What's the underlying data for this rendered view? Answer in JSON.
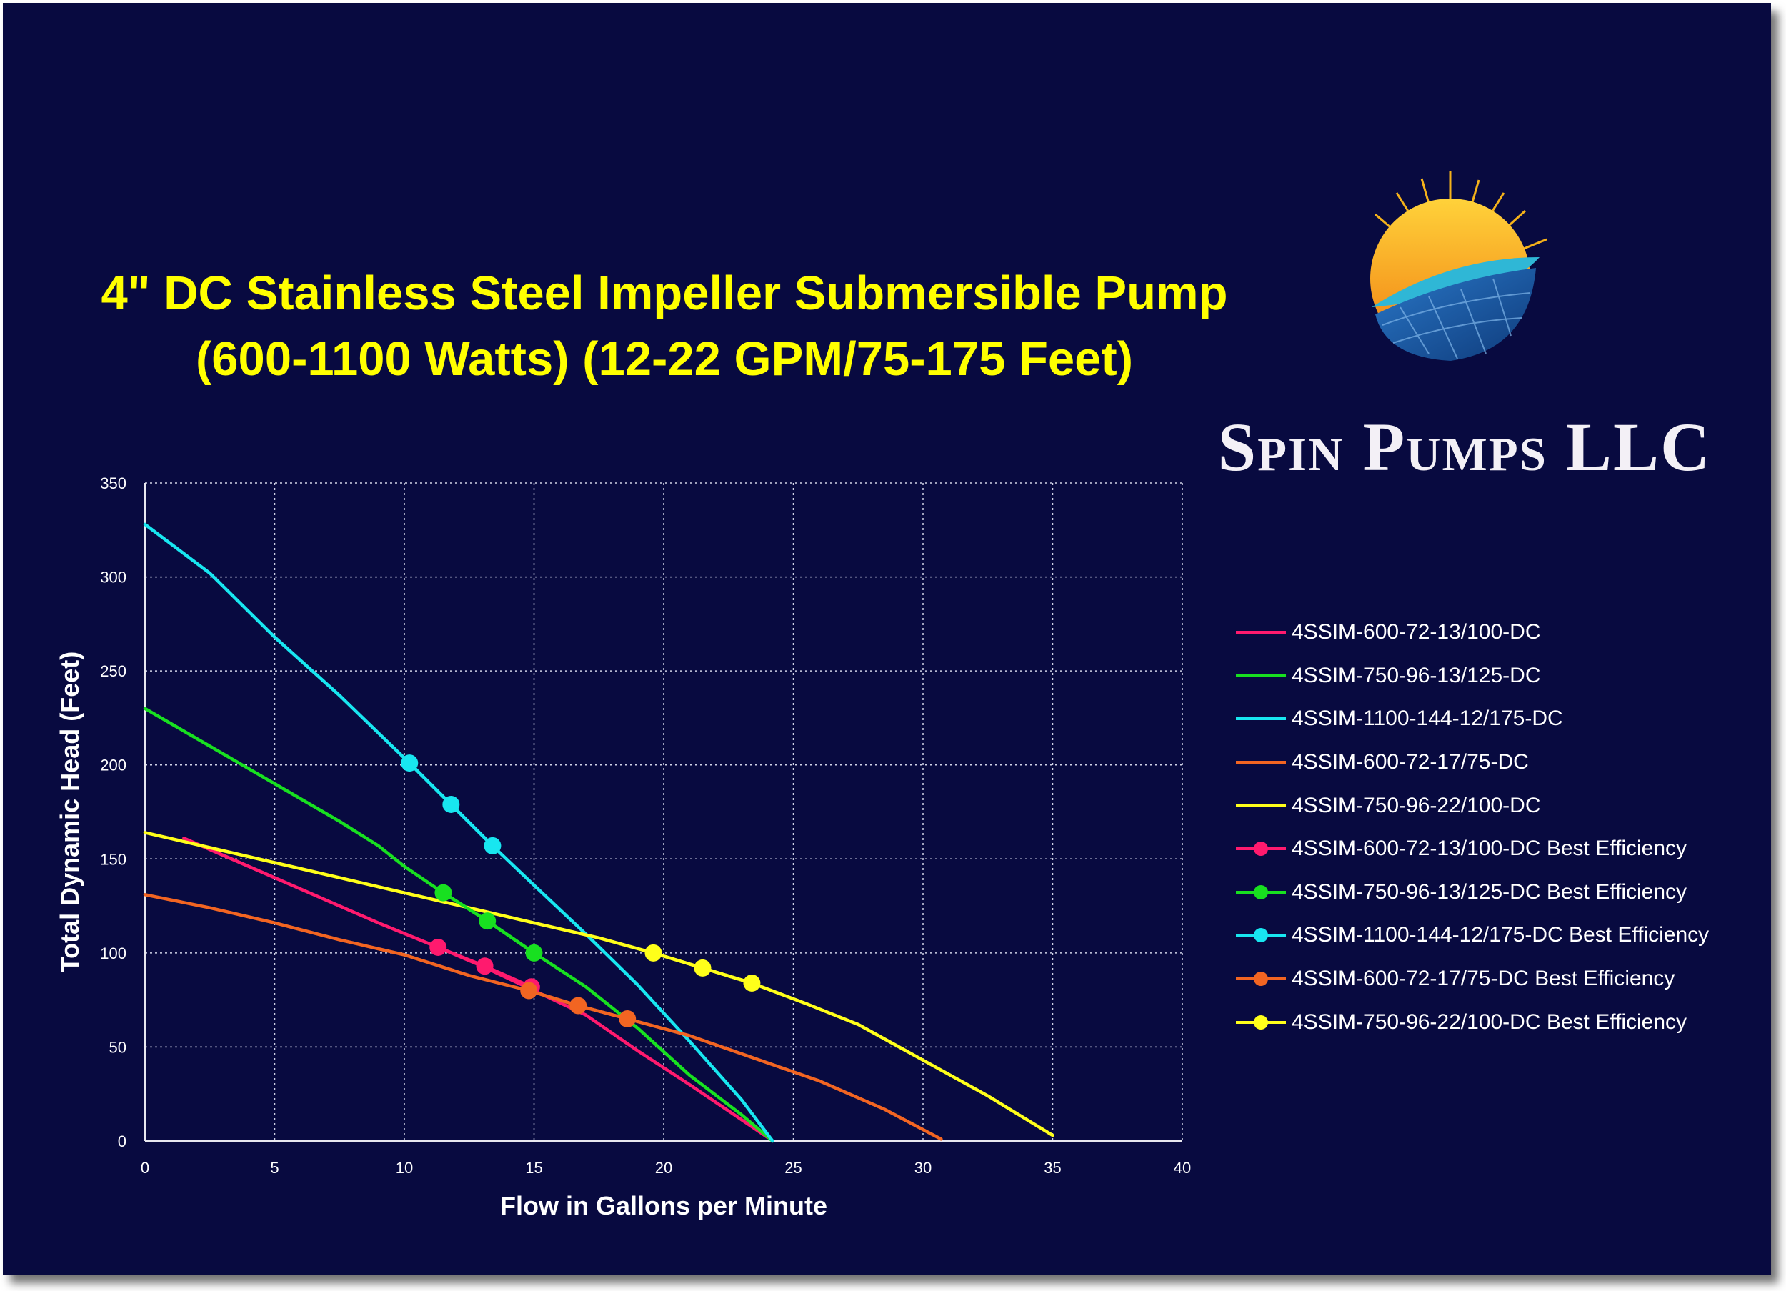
{
  "title_lines": [
    "4\" DC  Stainless Steel Impeller Submersible Pump",
    "(600-1100 Watts) (12-22 GPM/75-175 Feet)"
  ],
  "brand": {
    "name": "Spin Pumps LLC",
    "logo_icon": "sun-over-solar-panel-globe-icon",
    "colors": {
      "sun": "#f5b21a",
      "wave": "#2fb7d6",
      "globe": "#1e5aa8"
    }
  },
  "colors": {
    "background": "#080a40",
    "title": "#ffff00",
    "text": "#ffffff",
    "grid": "#cfd2e6"
  },
  "chart_data": {
    "type": "scatter",
    "xlabel": "Flow in Gallons per Minute",
    "ylabel": "Total Dynamic Head  (Feet)",
    "xlim": [
      0,
      40
    ],
    "ylim": [
      0,
      350
    ],
    "x_ticks": [
      0,
      5,
      10,
      15,
      20,
      25,
      30,
      35,
      40
    ],
    "y_ticks": [
      0,
      50,
      100,
      150,
      200,
      250,
      300,
      350
    ],
    "grid": true,
    "legend_position": "right",
    "series": [
      {
        "name": "4SSIM-600-72-13/100-DC",
        "color": "#ff1a6e",
        "style": "line",
        "points": [
          [
            1.5,
            161
          ],
          [
            3,
            152
          ],
          [
            5,
            140
          ],
          [
            7,
            128
          ],
          [
            9,
            116
          ],
          [
            11.3,
            103
          ],
          [
            13,
            93
          ],
          [
            15,
            80
          ],
          [
            17,
            67
          ],
          [
            19,
            48
          ],
          [
            21,
            30
          ],
          [
            22.5,
            16
          ],
          [
            24,
            2
          ]
        ]
      },
      {
        "name": "4SSIM-750-96-13/125-DC",
        "color": "#18e020",
        "style": "line",
        "points": [
          [
            0,
            230
          ],
          [
            2.5,
            210
          ],
          [
            5,
            190
          ],
          [
            7.5,
            170
          ],
          [
            9,
            157
          ],
          [
            10,
            146
          ],
          [
            11.5,
            132
          ],
          [
            13.2,
            117
          ],
          [
            15,
            100
          ],
          [
            17,
            82
          ],
          [
            19,
            60
          ],
          [
            21,
            35
          ],
          [
            23,
            14
          ],
          [
            24.2,
            0
          ]
        ]
      },
      {
        "name": "4SSIM-1100-144-12/175-DC",
        "color": "#18e6f0",
        "style": "line",
        "points": [
          [
            0,
            328
          ],
          [
            2.5,
            302
          ],
          [
            5,
            268
          ],
          [
            7.5,
            237
          ],
          [
            10.2,
            201
          ],
          [
            11.8,
            179
          ],
          [
            13.4,
            157
          ],
          [
            15,
            136
          ],
          [
            17,
            110
          ],
          [
            19,
            83
          ],
          [
            21,
            53
          ],
          [
            23,
            22
          ],
          [
            24.2,
            0
          ]
        ]
      },
      {
        "name": "4SSIM-600-72-17/75-DC",
        "color": "#f26522",
        "style": "line",
        "points": [
          [
            0,
            131
          ],
          [
            2.5,
            124
          ],
          [
            5,
            116
          ],
          [
            7.5,
            107
          ],
          [
            10,
            99
          ],
          [
            12.5,
            88
          ],
          [
            14.8,
            80
          ],
          [
            16.7,
            72
          ],
          [
            18.6,
            65
          ],
          [
            21,
            56
          ],
          [
            23.5,
            44
          ],
          [
            26,
            32
          ],
          [
            28.5,
            17
          ],
          [
            30.7,
            1
          ]
        ]
      },
      {
        "name": "4SSIM-750-96-22/100-DC",
        "color": "#ffff1a",
        "style": "line",
        "points": [
          [
            0,
            164
          ],
          [
            2.5,
            156
          ],
          [
            5,
            148
          ],
          [
            7.5,
            140
          ],
          [
            10,
            132
          ],
          [
            12.5,
            124
          ],
          [
            15,
            116
          ],
          [
            17.5,
            108
          ],
          [
            19.6,
            100
          ],
          [
            21.5,
            92
          ],
          [
            23.4,
            84
          ],
          [
            25.5,
            73
          ],
          [
            27.5,
            62
          ],
          [
            30,
            43
          ],
          [
            32.5,
            24
          ],
          [
            35,
            3
          ]
        ]
      },
      {
        "name": "4SSIM-600-72-13/100-DC Best Efficiency",
        "color": "#ff1a6e",
        "style": "markers",
        "points": [
          [
            11.3,
            103
          ],
          [
            13.1,
            93
          ],
          [
            14.9,
            82
          ]
        ]
      },
      {
        "name": "4SSIM-750-96-13/125-DC Best Efficiency",
        "color": "#18e020",
        "style": "markers",
        "points": [
          [
            11.5,
            132
          ],
          [
            13.2,
            117
          ],
          [
            15,
            100
          ]
        ]
      },
      {
        "name": "4SSIM-1100-144-12/175-DC Best Efficiency",
        "color": "#18e6f0",
        "style": "markers",
        "points": [
          [
            10.2,
            201
          ],
          [
            11.8,
            179
          ],
          [
            13.4,
            157
          ]
        ]
      },
      {
        "name": "4SSIM-600-72-17/75-DC Best Efficiency",
        "color": "#f26522",
        "style": "markers",
        "points": [
          [
            14.8,
            80
          ],
          [
            16.7,
            72
          ],
          [
            18.6,
            65
          ]
        ]
      },
      {
        "name": "4SSIM-750-96-22/100-DC Best Efficiency",
        "color": "#ffff1a",
        "style": "markers",
        "points": [
          [
            19.6,
            100
          ],
          [
            21.5,
            92
          ],
          [
            23.4,
            84
          ]
        ]
      }
    ]
  }
}
